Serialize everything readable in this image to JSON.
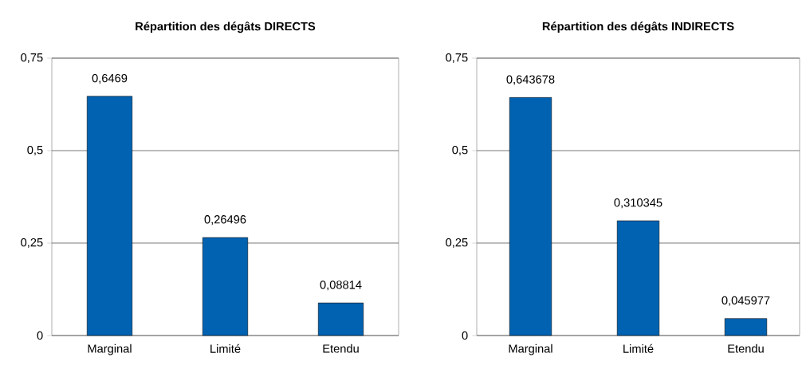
{
  "chart_data": [
    {
      "type": "bar",
      "title": "Répartition des dégâts DIRECTS",
      "categories": [
        "Marginal",
        "Limité",
        "Etendu"
      ],
      "values": [
        0.6469,
        0.26496,
        0.08814
      ],
      "color": "#0062b0",
      "value_labels": [
        "0,6469",
        "0,26496",
        "0,08814"
      ],
      "ylim": [
        0,
        0.75
      ],
      "yticks": [
        {
          "value": 0,
          "label": "0"
        },
        {
          "value": 0.25,
          "label": "0,25"
        },
        {
          "value": 0.5,
          "label": "0,5"
        },
        {
          "value": 0.75,
          "label": "0,75"
        }
      ],
      "grid": "y"
    },
    {
      "type": "bar",
      "title": "Répartition des dégâts INDIRECTS",
      "categories": [
        "Marginal",
        "Limité",
        "Etendu"
      ],
      "values": [
        0.643678,
        0.310345,
        0.045977
      ],
      "color": "#0062b0",
      "value_labels": [
        "0,643678",
        "0,310345",
        "0,045977"
      ],
      "ylim": [
        0,
        0.75
      ],
      "yticks": [
        {
          "value": 0,
          "label": "0"
        },
        {
          "value": 0.25,
          "label": "0,25"
        },
        {
          "value": 0.5,
          "label": "0,5"
        },
        {
          "value": 0.75,
          "label": "0,75"
        }
      ],
      "grid": "y"
    }
  ]
}
